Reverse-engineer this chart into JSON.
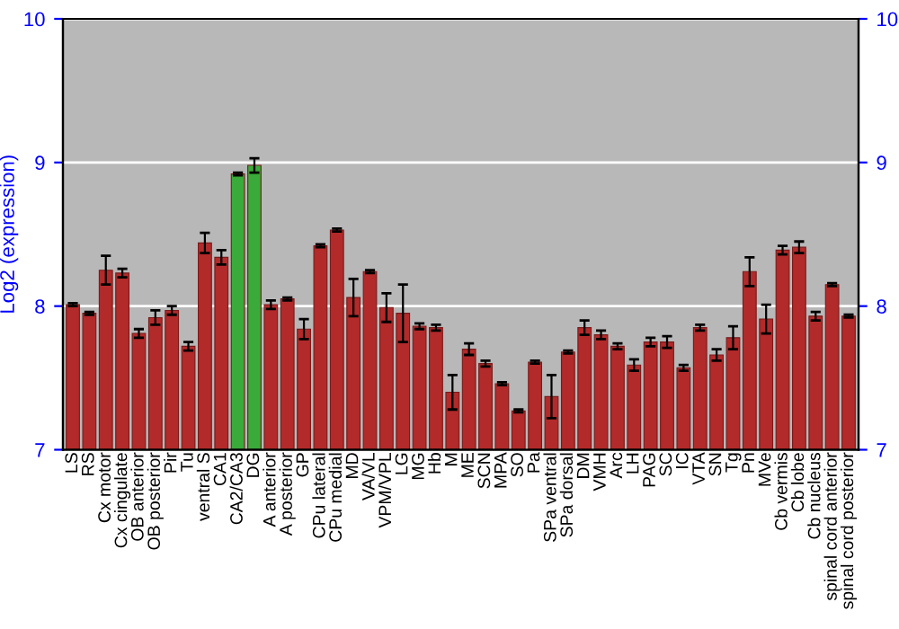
{
  "chart_data": {
    "type": "bar",
    "ylabel": "Log2 (expression)",
    "categories": [
      "LS",
      "RS",
      "Cx motor",
      "Cx cingulate",
      "OB anterior",
      "OB posterior",
      "Pir",
      "Tu",
      "ventral S",
      "CA1",
      "CA2/CA3",
      "DG",
      "A anterior",
      "A posterior",
      "GP",
      "CPu lateral",
      "CPu medial",
      "MD",
      "VA/VL",
      "VPM/VPL",
      "LG",
      "MG",
      "Hb",
      "M",
      "ME",
      "SCN",
      "MPA",
      "SO",
      "Pa",
      "SPa ventral",
      "SPa dorsal",
      "DM",
      "VMH",
      "Arc",
      "LH",
      "PAG",
      "SC",
      "IC",
      "VTA",
      "SN",
      "Tg",
      "Pn",
      "MVe",
      "Cb vermis",
      "Cb lobe",
      "Cb nucleus",
      "spinal cord anterior",
      "spinal cord posterior"
    ],
    "values": [
      8.01,
      7.95,
      8.25,
      8.23,
      7.81,
      7.92,
      7.97,
      7.72,
      8.44,
      8.34,
      8.92,
      8.98,
      8.01,
      8.05,
      7.84,
      8.42,
      8.53,
      8.06,
      8.24,
      7.99,
      7.95,
      7.86,
      7.85,
      7.4,
      7.7,
      7.6,
      7.46,
      7.27,
      7.61,
      7.37,
      7.68,
      7.85,
      7.8,
      7.72,
      7.59,
      7.75,
      7.75,
      7.57,
      7.85,
      7.66,
      7.78,
      8.24,
      7.91,
      8.39,
      8.41,
      7.93,
      8.15,
      7.93
    ],
    "errors": [
      0.01,
      0.01,
      0.1,
      0.03,
      0.03,
      0.05,
      0.03,
      0.03,
      0.07,
      0.05,
      0.01,
      0.05,
      0.03,
      0.01,
      0.07,
      0.01,
      0.01,
      0.13,
      0.01,
      0.1,
      0.2,
      0.02,
      0.02,
      0.12,
      0.04,
      0.02,
      0.01,
      0.01,
      0.01,
      0.15,
      0.01,
      0.05,
      0.03,
      0.02,
      0.04,
      0.03,
      0.04,
      0.02,
      0.02,
      0.04,
      0.08,
      0.1,
      0.1,
      0.03,
      0.04,
      0.03,
      0.01,
      0.01
    ],
    "colors": [
      "#b22a2a",
      "#b22a2a",
      "#b22a2a",
      "#b22a2a",
      "#b22a2a",
      "#b22a2a",
      "#b22a2a",
      "#b22a2a",
      "#b22a2a",
      "#b22a2a",
      "#3aaa3a",
      "#3aaa3a",
      "#b22a2a",
      "#b22a2a",
      "#b22a2a",
      "#b22a2a",
      "#b22a2a",
      "#b22a2a",
      "#b22a2a",
      "#b22a2a",
      "#b22a2a",
      "#b22a2a",
      "#b22a2a",
      "#b22a2a",
      "#b22a2a",
      "#b22a2a",
      "#b22a2a",
      "#b22a2a",
      "#b22a2a",
      "#b22a2a",
      "#b22a2a",
      "#b22a2a",
      "#b22a2a",
      "#b22a2a",
      "#b22a2a",
      "#b22a2a",
      "#b22a2a",
      "#b22a2a",
      "#b22a2a",
      "#b22a2a",
      "#b22a2a",
      "#b22a2a",
      "#b22a2a",
      "#b22a2a",
      "#b22a2a",
      "#b22a2a",
      "#b22a2a",
      "#b22a2a"
    ],
    "ylim": [
      7,
      10
    ],
    "yticks": [
      7,
      8,
      9,
      10
    ],
    "y2lim": [
      7,
      10
    ],
    "y2ticks": [
      7,
      8,
      9,
      10
    ],
    "grid": "y"
  }
}
